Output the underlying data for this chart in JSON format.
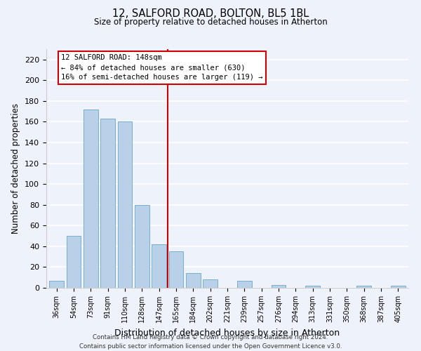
{
  "title": "12, SALFORD ROAD, BOLTON, BL5 1BL",
  "subtitle": "Size of property relative to detached houses in Atherton",
  "xlabel": "Distribution of detached houses by size in Atherton",
  "ylabel": "Number of detached properties",
  "bin_labels": [
    "36sqm",
    "54sqm",
    "73sqm",
    "91sqm",
    "110sqm",
    "128sqm",
    "147sqm",
    "165sqm",
    "184sqm",
    "202sqm",
    "221sqm",
    "239sqm",
    "257sqm",
    "276sqm",
    "294sqm",
    "313sqm",
    "331sqm",
    "350sqm",
    "368sqm",
    "387sqm",
    "405sqm"
  ],
  "bar_heights": [
    7,
    50,
    172,
    163,
    160,
    80,
    42,
    35,
    14,
    8,
    0,
    7,
    0,
    3,
    0,
    2,
    0,
    0,
    2,
    0,
    2
  ],
  "bar_color": "#b8d0e8",
  "bar_edge_color": "#7aadd0",
  "vline_color": "#cc0000",
  "annotation_lines": [
    "12 SALFORD ROAD: 148sqm",
    "← 84% of detached houses are smaller (630)",
    "16% of semi-detached houses are larger (119) →"
  ],
  "annotation_box_color": "#ffffff",
  "annotation_box_edge": "#cc0000",
  "ylim": [
    0,
    230
  ],
  "yticks": [
    0,
    20,
    40,
    60,
    80,
    100,
    120,
    140,
    160,
    180,
    200,
    220
  ],
  "footer_lines": [
    "Contains HM Land Registry data © Crown copyright and database right 2024.",
    "Contains public sector information licensed under the Open Government Licence v3.0."
  ],
  "background_color": "#eef2fa",
  "grid_color": "#ffffff"
}
